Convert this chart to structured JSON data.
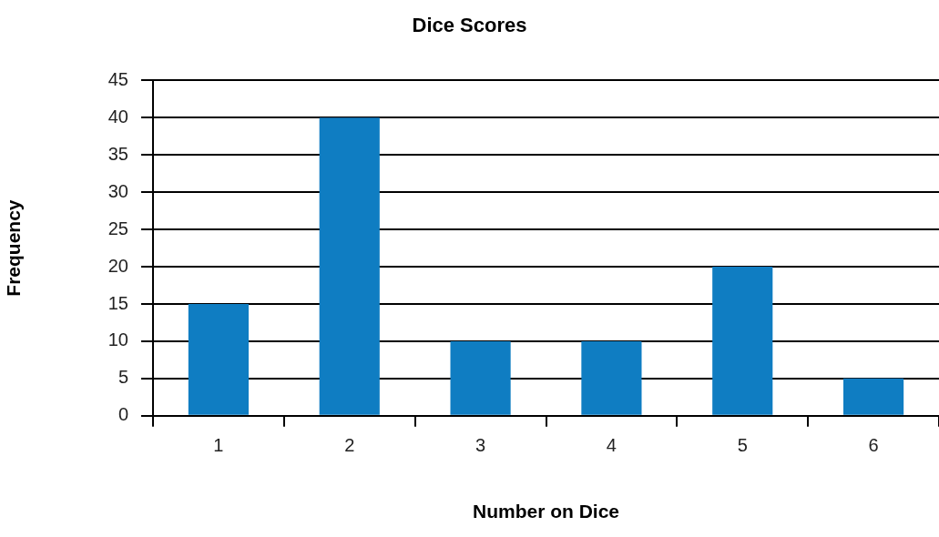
{
  "chart_data": {
    "type": "bar",
    "title": "Dice Scores",
    "xlabel": "Number on Dice",
    "ylabel": "Frequency",
    "categories": [
      "1",
      "2",
      "3",
      "4",
      "5",
      "6"
    ],
    "values": [
      15,
      40,
      10,
      10,
      20,
      5
    ],
    "color": "#0f7dc2",
    "ylim": [
      0,
      45
    ],
    "yticks": [
      0,
      5,
      10,
      15,
      20,
      25,
      30,
      35,
      40,
      45
    ],
    "grid": "y",
    "legend": false
  }
}
